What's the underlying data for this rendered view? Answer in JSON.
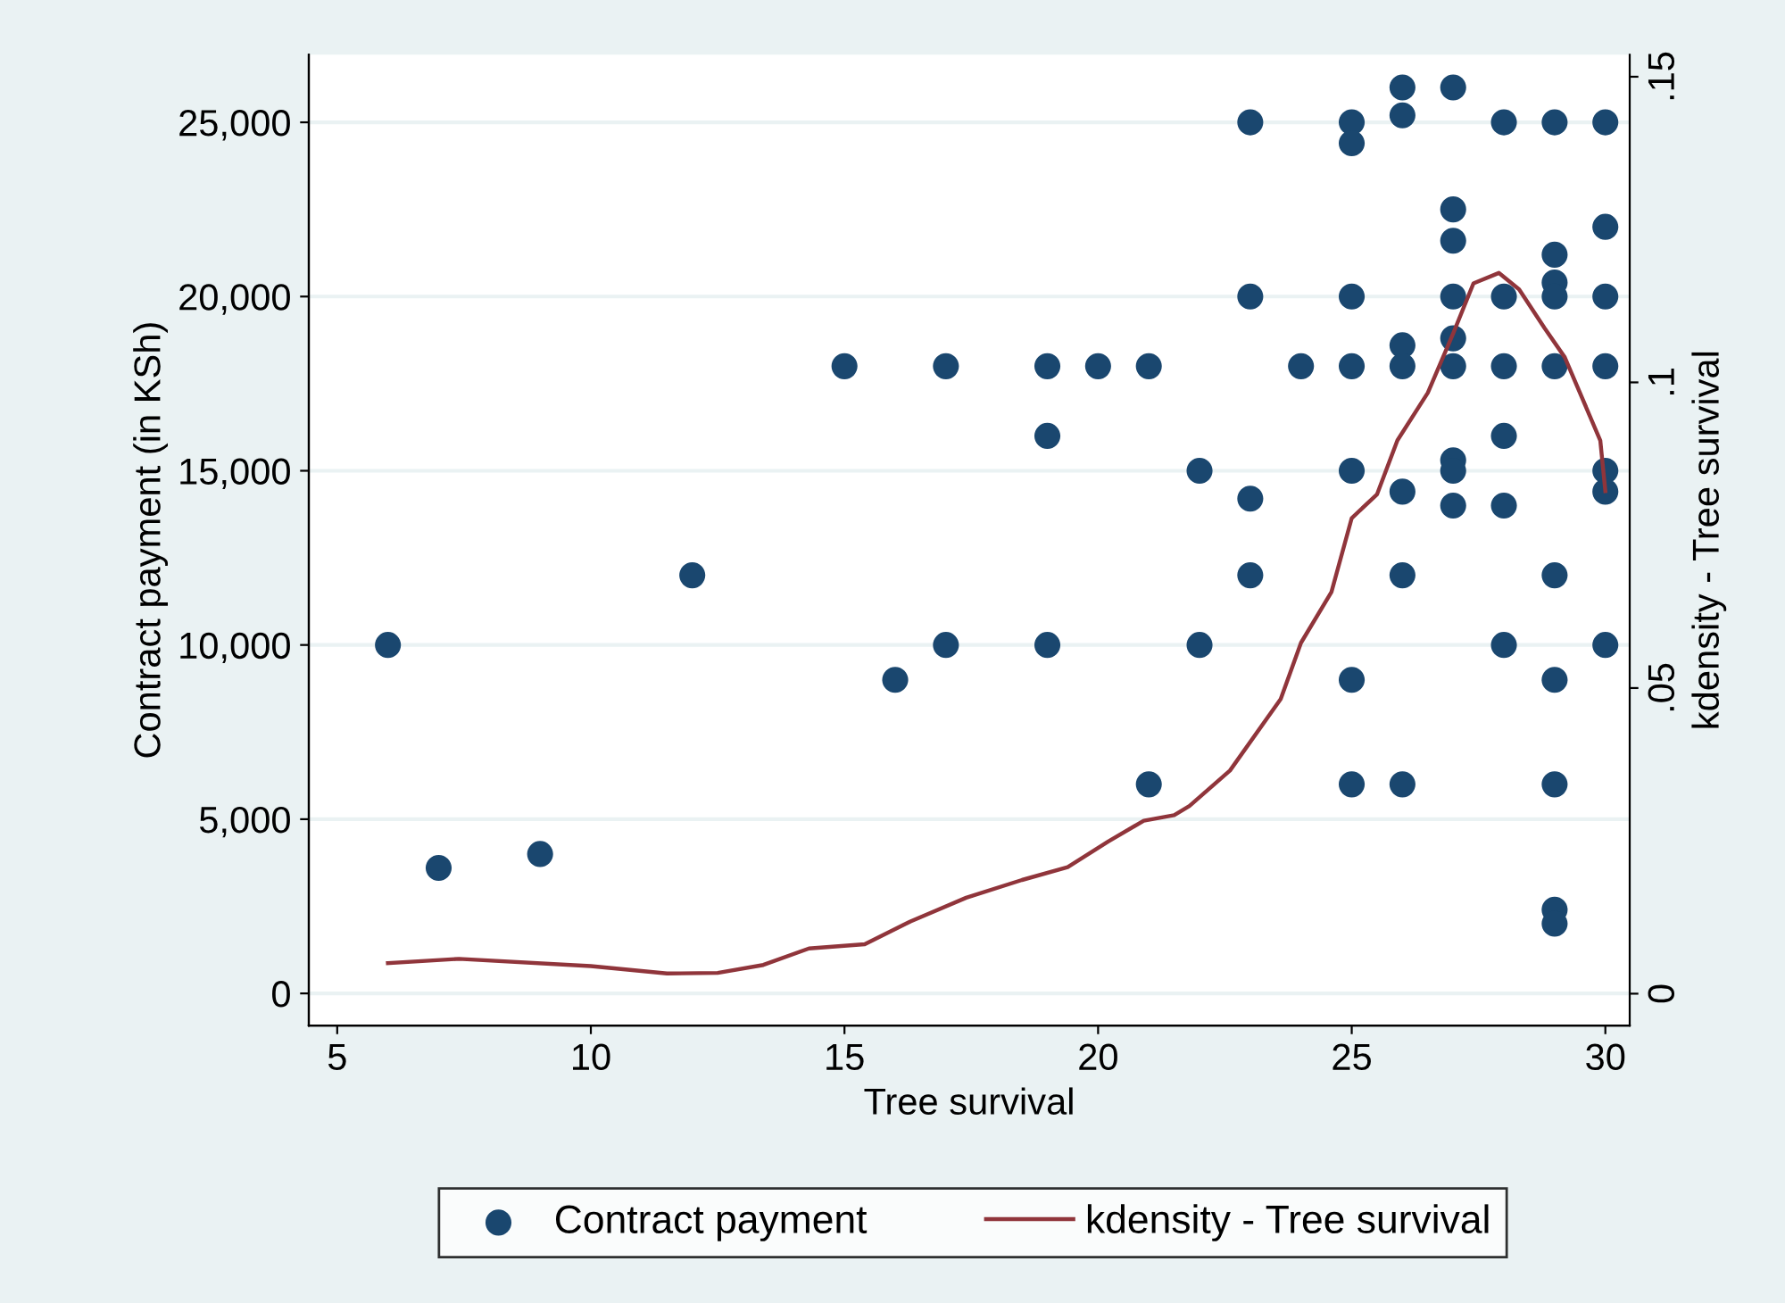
{
  "chart_data": {
    "type": "scatter",
    "xlabel": "Tree survival",
    "ylabel": "Contract payment (in KSh)",
    "y2label": "kdensity - Tree survival",
    "xlim": [
      4.44,
      30.48
    ],
    "xticks": [
      5,
      10,
      15,
      20,
      25,
      30
    ],
    "ylim": [
      -920,
      26940
    ],
    "yticks": [
      {
        "value": 0,
        "label": "0"
      },
      {
        "value": 5000,
        "label": "5,000"
      },
      {
        "value": 10000,
        "label": "10,000"
      },
      {
        "value": 15000,
        "label": "15,000"
      },
      {
        "value": 20000,
        "label": "20,000"
      },
      {
        "value": 25000,
        "label": "25,000"
      }
    ],
    "y2lim": [
      -0.0052,
      0.1536
    ],
    "y2ticks": [
      {
        "value": 0,
        "label": "0"
      },
      {
        "value": 0.05,
        "label": ".05"
      },
      {
        "value": 0.1,
        "label": ".1"
      },
      {
        "value": 0.15,
        "label": ".15"
      }
    ],
    "grid": "y",
    "legend": "bottom",
    "series": [
      {
        "name": "Contract payment",
        "color": "#1a476f",
        "marker": "circle",
        "x": [
          6,
          7,
          9,
          12,
          15,
          16,
          17,
          17,
          19,
          19,
          19,
          20,
          21,
          21,
          22,
          22,
          23,
          23,
          23,
          23,
          24,
          25,
          25,
          25,
          25,
          25,
          25,
          25,
          26,
          26,
          26,
          26,
          26,
          26,
          26,
          27,
          27,
          27,
          27,
          27,
          27,
          27,
          27,
          27,
          28,
          28,
          28,
          28,
          28,
          28,
          29,
          29,
          29,
          29,
          29,
          29,
          29,
          29,
          29,
          29,
          30,
          30,
          30,
          30,
          30,
          30,
          30
        ],
        "values": [
          10000,
          3600,
          4000,
          12000,
          18000,
          9000,
          18000,
          10000,
          18000,
          16000,
          10000,
          18000,
          18000,
          6000,
          15000,
          10000,
          25000,
          20000,
          14200,
          12000,
          18000,
          25000,
          24400,
          20000,
          18000,
          15000,
          9000,
          6000,
          26000,
          25200,
          18600,
          18000,
          14400,
          12000,
          6000,
          26000,
          22500,
          21600,
          20000,
          18800,
          18000,
          15300,
          15000,
          14000,
          25000,
          20000,
          18000,
          16000,
          14000,
          10000,
          25000,
          21200,
          20400,
          20000,
          18000,
          12000,
          9000,
          6000,
          2400,
          2000,
          25000,
          22000,
          20000,
          18000,
          15000,
          14400,
          10000
        ]
      },
      {
        "name": "kdensity - Tree survival",
        "type": "line",
        "axis": "y2",
        "color": "#90353b",
        "marker": "none",
        "line_style": "solid",
        "x": [
          6,
          7.4,
          10,
          11.5,
          12.5,
          13.4,
          14.3,
          15.4,
          16.3,
          17.4,
          18.5,
          19.4,
          20.2,
          20.9,
          21.5,
          21.8,
          22.6,
          23.6,
          24,
          24.6,
          25,
          25.5,
          25.9,
          26.5,
          27,
          27.4,
          27.9,
          28.3,
          28.8,
          29.2,
          29.9,
          30
        ],
        "values": [
          0.005,
          0.0057,
          0.0045,
          0.0033,
          0.0034,
          0.0047,
          0.0074,
          0.0081,
          0.0118,
          0.0157,
          0.0186,
          0.0207,
          0.0249,
          0.0283,
          0.0292,
          0.0307,
          0.0365,
          0.0482,
          0.0574,
          0.0657,
          0.0778,
          0.0817,
          0.0905,
          0.0983,
          0.108,
          0.1162,
          0.1179,
          0.1152,
          0.1089,
          0.1041,
          0.0905,
          0.0822
        ]
      }
    ]
  }
}
